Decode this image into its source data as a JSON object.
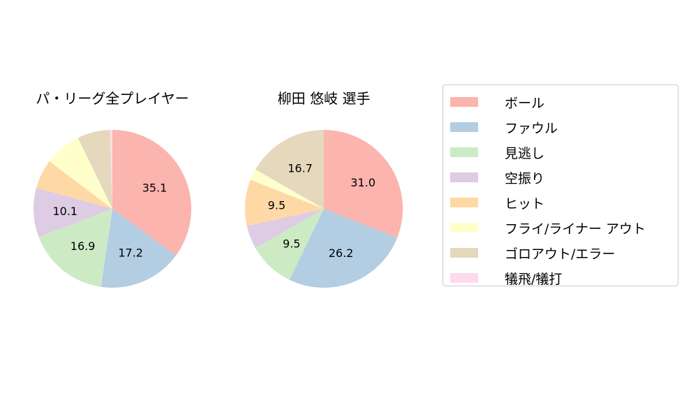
{
  "chart_data": [
    {
      "type": "pie",
      "title": "パ・リーグ全プレイヤー",
      "categories": [
        "ボール",
        "ファウル",
        "見逃し",
        "空振り",
        "ヒット",
        "フライ/ライナー アウト",
        "ゴロアウト/エラー",
        "犠飛/犠打"
      ],
      "values": [
        35.1,
        17.2,
        16.9,
        10.1,
        6.0,
        7.5,
        6.7,
        0.5
      ],
      "labels": [
        "35.1",
        "17.2",
        "16.9",
        "10.1",
        null,
        null,
        null,
        null
      ]
    },
    {
      "type": "pie",
      "title": "柳田 悠岐  選手",
      "categories": [
        "ボール",
        "ファウル",
        "見逃し",
        "空振り",
        "ヒット",
        "フライ/ライナー アウト",
        "ゴロアウト/エラー",
        "犠飛/犠打"
      ],
      "values": [
        31.0,
        26.2,
        9.5,
        4.8,
        9.5,
        2.3,
        16.7,
        0
      ],
      "labels": [
        "31.0",
        "26.2",
        "9.5",
        null,
        "9.5",
        null,
        "16.7",
        null
      ]
    }
  ],
  "legend": {
    "placement": "right",
    "items": [
      "ボール",
      "ファウル",
      "見逃し",
      "空振り",
      "ヒット",
      "フライ/ライナー アウト",
      "ゴロアウト/エラー",
      "犠飛/犠打"
    ]
  },
  "colors": [
    "#fbb4ae",
    "#b3cde3",
    "#ccebc5",
    "#decbe4",
    "#fed9a6",
    "#ffffcc",
    "#e5d8bd",
    "#fddaec"
  ]
}
